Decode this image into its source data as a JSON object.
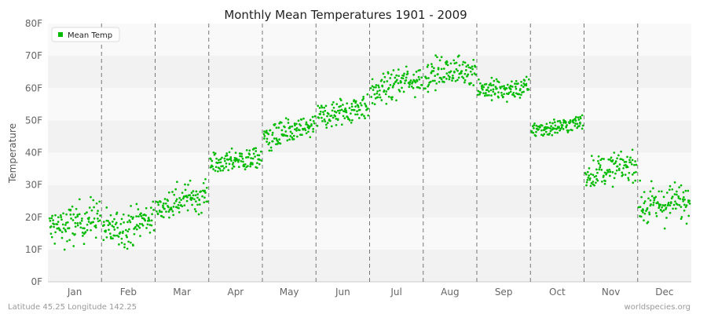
{
  "chart_data": {
    "type": "scatter",
    "title": "Monthly Mean Temperatures 1901 - 2009",
    "xlabel": "",
    "ylabel": "Temperature",
    "ylim": [
      0,
      80
    ],
    "y_unit": "F",
    "categories": [
      "Jan",
      "Feb",
      "Mar",
      "Apr",
      "May",
      "Jun",
      "Jul",
      "Aug",
      "Sep",
      "Oct",
      "Nov",
      "Dec"
    ],
    "y_ticks": [
      "0F",
      "10F",
      "20F",
      "30F",
      "40F",
      "50F",
      "60F",
      "70F",
      "80F"
    ],
    "series": [
      {
        "name": "Mean Temp",
        "color": "#00bb00",
        "points_per_month": 109,
        "monthly_center": [
          18.0,
          17.0,
          25.0,
          37.5,
          46.0,
          52.5,
          61.5,
          65.0,
          59.0,
          48.0,
          35.0,
          24.0
        ],
        "monthly_start": [
          16.5,
          16.0,
          22.0,
          36.5,
          44.5,
          51.0,
          58.0,
          64.0,
          60.0,
          47.0,
          33.5,
          23.0
        ],
        "monthly_end": [
          20.5,
          20.5,
          27.5,
          38.5,
          48.5,
          55.0,
          63.0,
          66.0,
          60.0,
          49.5,
          36.5,
          25.5
        ],
        "monthly_min": [
          9.5,
          9.0,
          19.5,
          33.0,
          40.5,
          47.5,
          55.0,
          58.5,
          54.5,
          45.0,
          28.0,
          15.0
        ],
        "monthly_max": [
          26.5,
          25.0,
          32.0,
          42.5,
          51.5,
          60.0,
          68.0,
          71.0,
          63.5,
          52.0,
          41.0,
          31.5
        ]
      }
    ],
    "grid": "alternating horizontal bands",
    "month_separators": "dashed vertical lines",
    "legend_placement": "top-left"
  },
  "footer": {
    "location": "Latitude 45.25 Longitude 142.25",
    "source": "worldspecies.org"
  },
  "colors": {
    "band_light": "#f9f9f9",
    "band_dark": "#f2f2f2",
    "separator": "#777777",
    "axis": "#cccccc"
  }
}
